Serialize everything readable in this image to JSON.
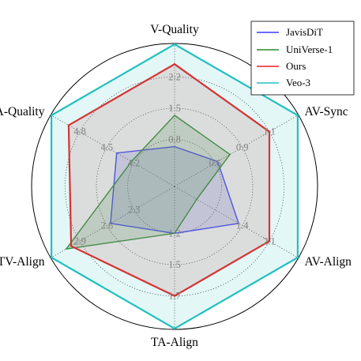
{
  "chart_data": {
    "type": "radar",
    "axes": [
      "V-Quality",
      "AV-Sync",
      "AV-Align",
      "TA-Align",
      "TV-Align",
      "A-Quality"
    ],
    "ticks": [
      [
        "0.8",
        "1.5",
        "2.2"
      ],
      [
        "0.6",
        "0.9",
        "1.1"
      ],
      [
        "1.4",
        "2.1"
      ],
      [
        "1.2",
        "1.5",
        "1.7"
      ],
      [
        "2.3",
        "2.6",
        "2.9"
      ],
      [
        "4.2",
        "4.5",
        "4.8"
      ]
    ],
    "tick_levels": [
      [
        0.33,
        0.55,
        0.77
      ],
      [
        0.33,
        0.55,
        0.77
      ],
      [
        0.55,
        0.77
      ],
      [
        0.33,
        0.55,
        0.77
      ],
      [
        0.33,
        0.55,
        0.77
      ],
      [
        0.33,
        0.55,
        0.77
      ]
    ],
    "series": [
      {
        "name": "JavisDiT",
        "color": "#3a3aff",
        "fill_color": "#6a6ad8",
        "fill_opacity": 0.22,
        "values": [
          0.8,
          0.55,
          1.65,
          1.2,
          2.55,
          4.25
        ]
      },
      {
        "name": "UniVerse-1",
        "color": "#2a8a2a",
        "fill_color": "#3a8a3a",
        "fill_opacity": 0.2,
        "values": [
          1.62,
          0.7,
          0.7,
          1.2,
          2.9,
          4.28
        ]
      },
      {
        "name": "Ours",
        "color": "#ee2020",
        "fill_color": "#cc7070",
        "fill_opacity": 0.2,
        "values": [
          2.4,
          0.98,
          1.75,
          1.62,
          2.9,
          4.88
        ]
      },
      {
        "name": "Veo-3",
        "color": "#20c0c0",
        "fill_color": "#20c0c0",
        "fill_opacity": 0.12,
        "values": [
          2.6,
          1.1,
          2.15,
          1.8,
          2.98,
          5.0
        ]
      }
    ],
    "series_levels": [
      [
        0.28,
        0.35,
        0.52,
        0.33,
        0.52,
        0.47
      ],
      [
        0.5,
        0.45,
        0.18,
        0.33,
        0.88,
        0.35
      ],
      [
        0.86,
        0.77,
        0.77,
        0.77,
        0.84,
        0.86
      ],
      [
        1.0,
        1.0,
        1.0,
        1.0,
        1.0,
        1.0
      ]
    ],
    "grid": true,
    "legend_position": "top-right"
  }
}
